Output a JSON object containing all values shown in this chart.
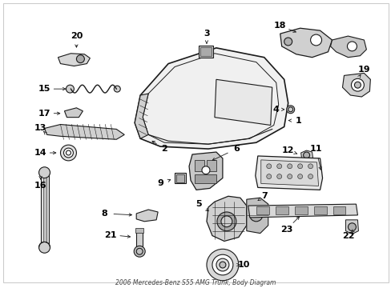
{
  "title": "2006 Mercedes-Benz S55 AMG Trunk, Body Diagram",
  "bg_color": "#ffffff",
  "line_color": "#1a1a1a",
  "text_color": "#000000",
  "fig_width": 4.89,
  "fig_height": 3.6,
  "dpi": 100
}
